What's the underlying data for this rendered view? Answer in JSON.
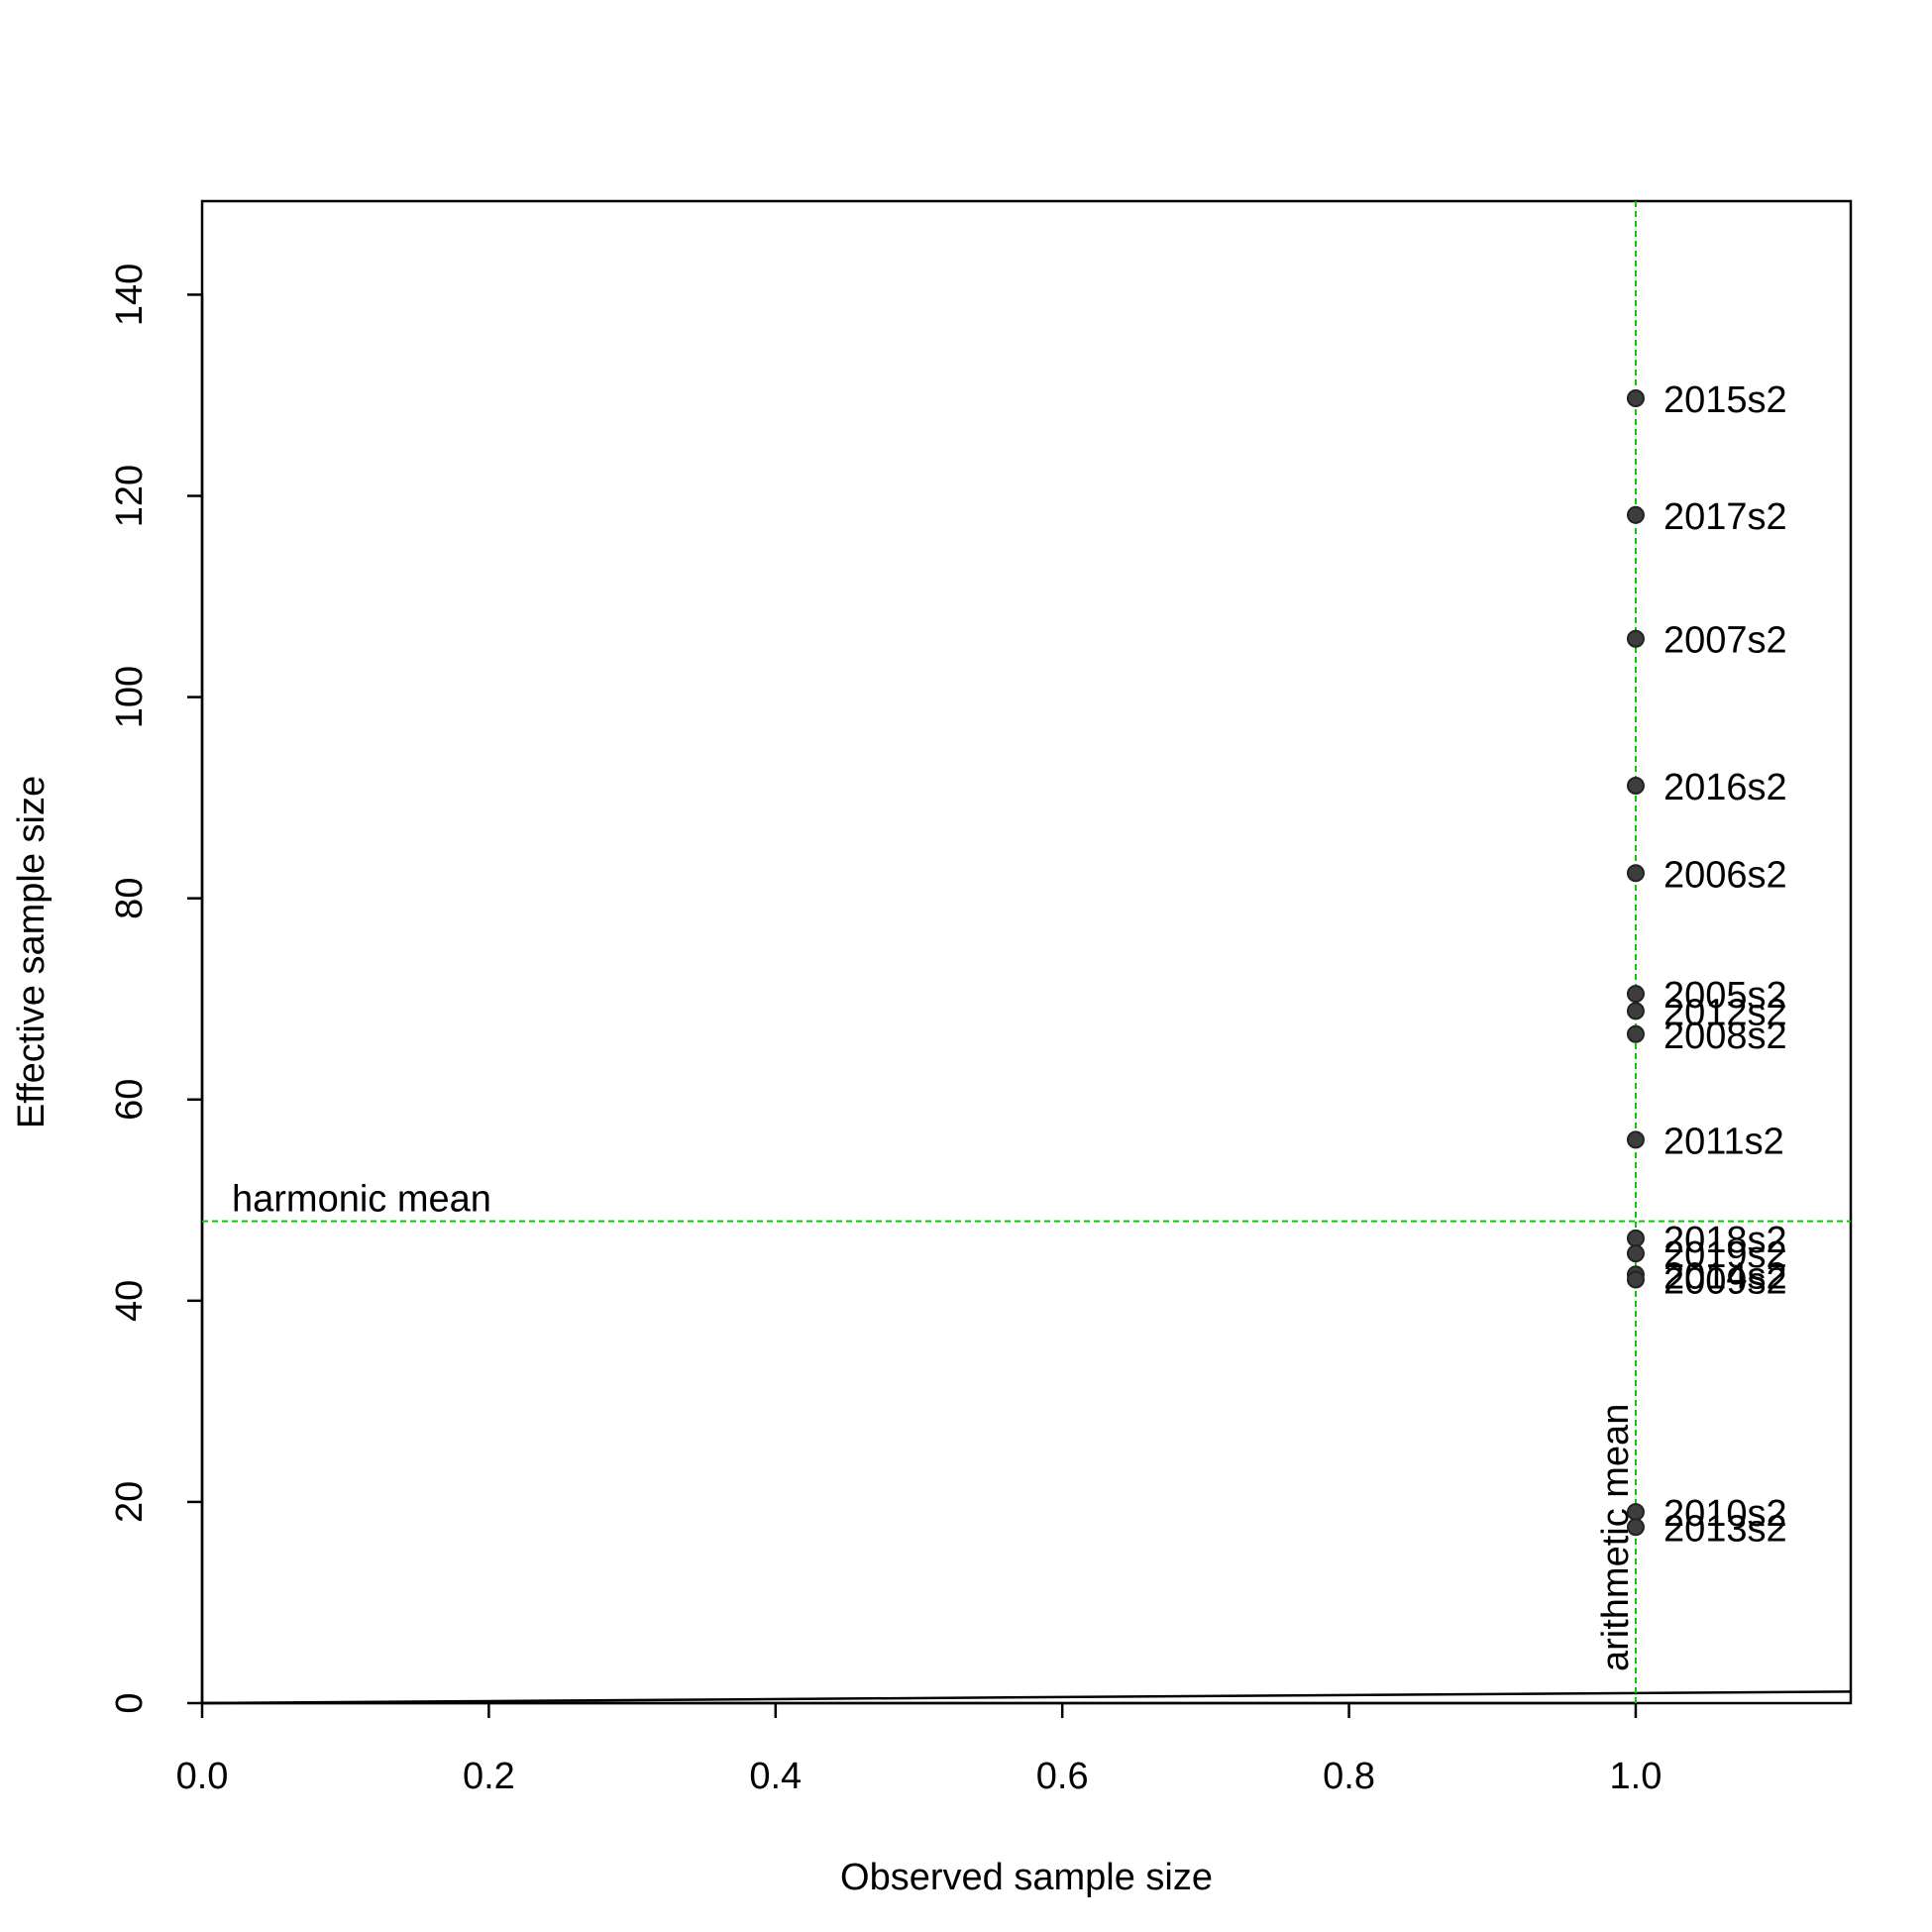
{
  "chart_data": {
    "type": "scatter",
    "x_label": "Observed sample size",
    "y_label": "Effective sample size",
    "xlim": [
      0,
      1.15
    ],
    "ylim": [
      0,
      149.3
    ],
    "xticks": [
      {
        "value": 0,
        "label": "0.0"
      },
      0.2,
      0.4,
      0.6,
      0.8,
      {
        "value": 1,
        "label": "1.0"
      }
    ],
    "yticks": [
      0,
      20,
      40,
      60,
      80,
      100,
      120,
      140
    ],
    "series": [
      {
        "color": "#3d3d3d",
        "x": [
          1,
          1,
          1,
          1,
          1,
          1,
          1,
          1,
          1,
          1,
          1,
          1,
          1,
          1,
          1
        ],
        "values": [
          129.7,
          118.1,
          105.8,
          91.2,
          82.5,
          70.5,
          68.8,
          66.5,
          56.0,
          46.2,
          44.7,
          42.6,
          42.1,
          19.0,
          17.5
        ],
        "labels": [
          "2015s2",
          "2017s2",
          "2007s2",
          "2016s2",
          "2006s2",
          "2005s2",
          "2012s2",
          "2008s2",
          "2011s2",
          "2018s2",
          "2019s2",
          "2014s2",
          "2009s2",
          "2010s2",
          "2013s2"
        ]
      }
    ],
    "hlines": [
      {
        "value": 47.9,
        "label": "harmonic mean",
        "color": "#00cc00"
      }
    ],
    "vlines": [
      {
        "value": 1,
        "label": "arithmetic mean",
        "color": "#00cc00"
      }
    ]
  }
}
